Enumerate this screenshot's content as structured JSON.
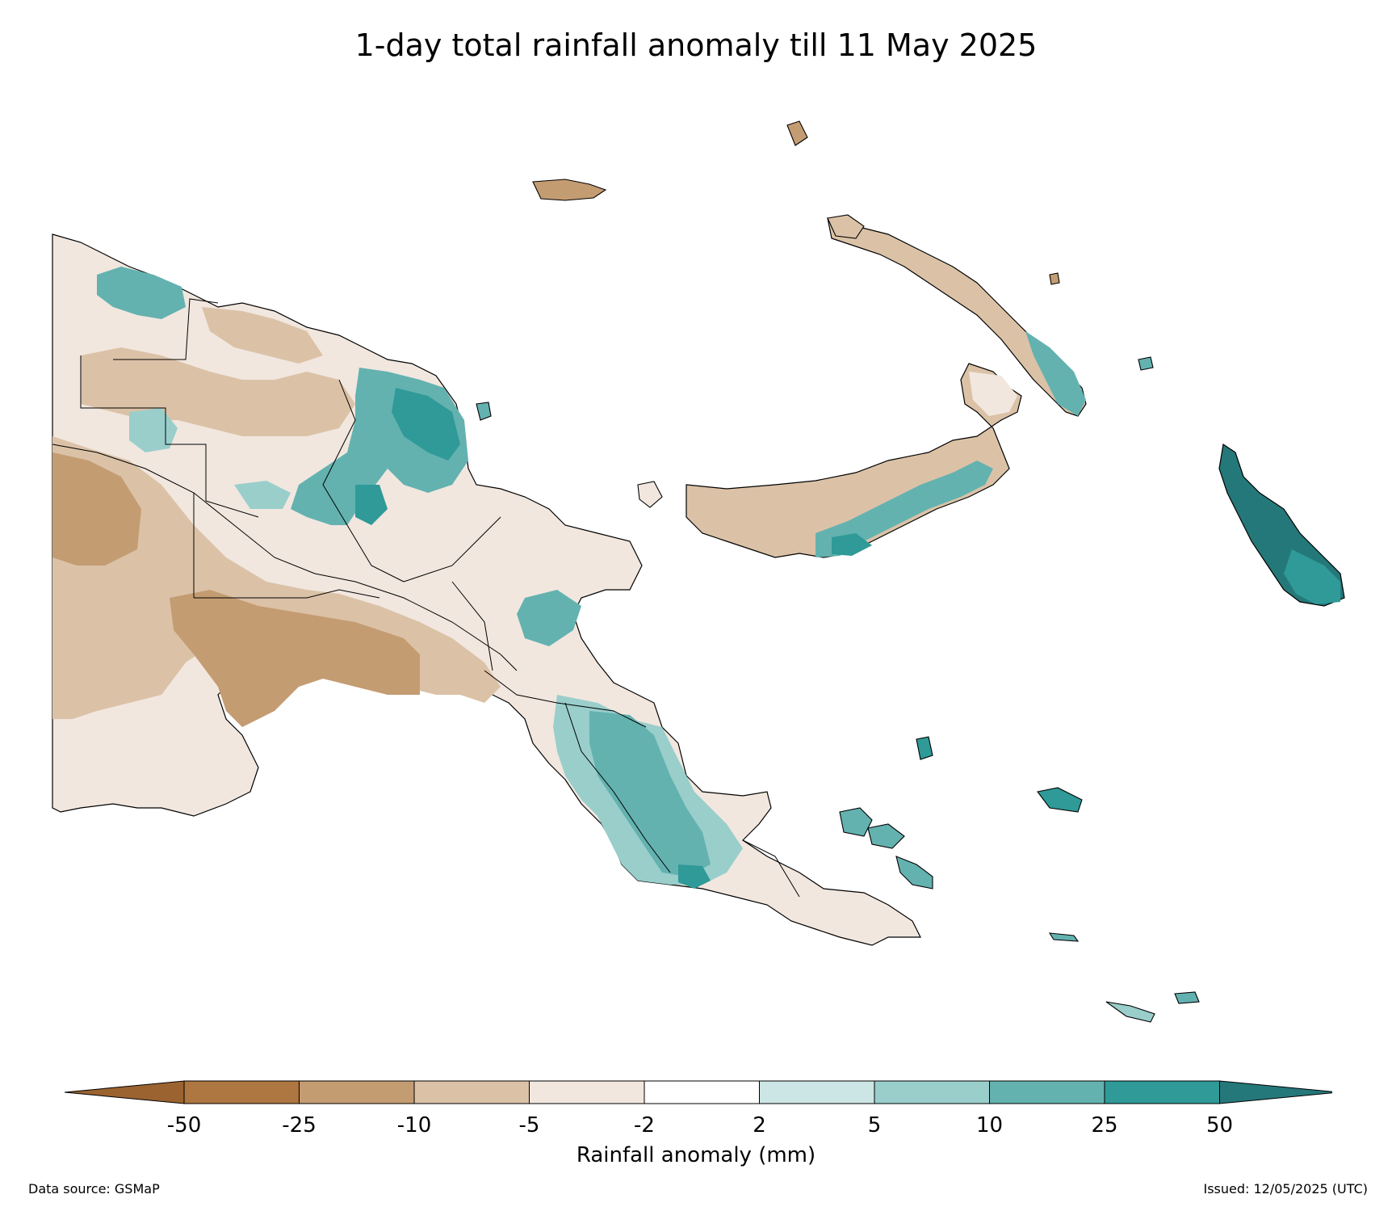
{
  "title": "1-day total rainfall anomaly till 11 May 2025",
  "colorbar": {
    "label": "Rainfall anomaly (mm)",
    "ticks": [
      "-50",
      "-25",
      "-10",
      "-5",
      "-2",
      "2",
      "5",
      "10",
      "25",
      "50"
    ],
    "colors": [
      "#9a6330",
      "#ae7640",
      "#c49c72",
      "#dbc2a7",
      "#f1e7df",
      "#ffffff",
      "#cce6e5",
      "#99cecb",
      "#63b2b0",
      "#2f9a97",
      "#25787a"
    ]
  },
  "footer": {
    "source": "Data source: GSMaP",
    "issued": "Issued: 12/05/2025 (UTC)"
  }
}
